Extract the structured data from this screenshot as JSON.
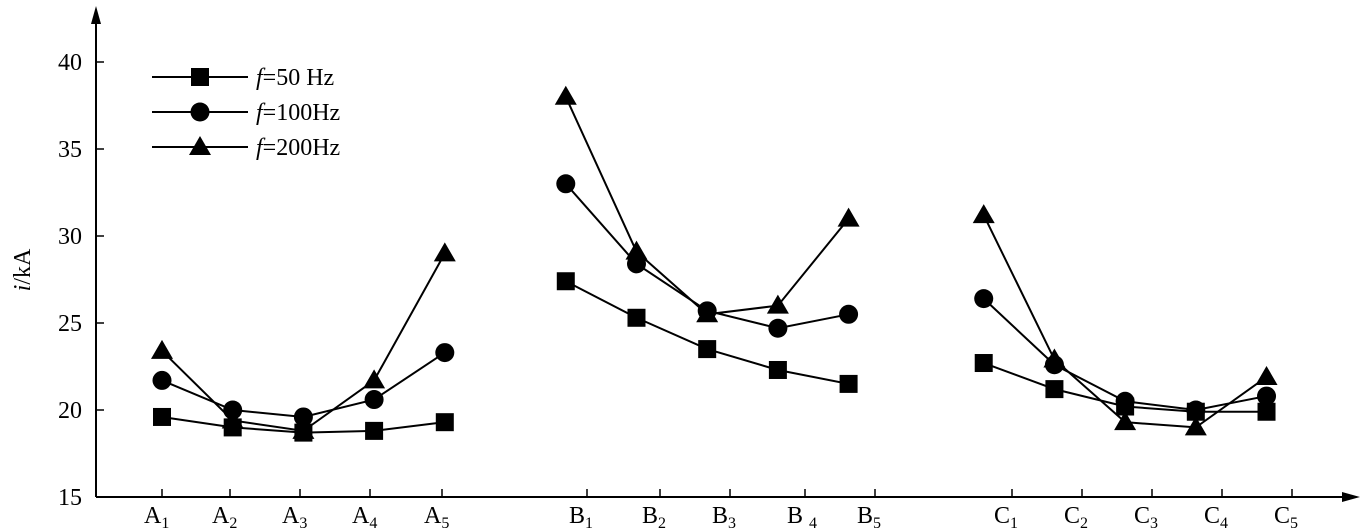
{
  "chart_data": {
    "type": "line",
    "ylabel": "i/kA",
    "ylabel_italic": "i",
    "ylabel_unit": "/kA",
    "ylim": [
      15,
      42
    ],
    "yticks": [
      "15",
      "20",
      "25",
      "30",
      "35",
      "40"
    ],
    "xtick_labels": [
      {
        "base": "A",
        "sub": "1"
      },
      {
        "base": "A",
        "sub": "2"
      },
      {
        "base": "A",
        "sub": "3"
      },
      {
        "base": "A",
        "sub": "4"
      },
      {
        "base": "A",
        "sub": "5"
      },
      {
        "base": "B",
        "sub": "1"
      },
      {
        "base": "B",
        "sub": "2"
      },
      {
        "base": "B",
        "sub": "3"
      },
      {
        "base": "B ",
        "sub": "4"
      },
      {
        "base": "B",
        "sub": "5"
      },
      {
        "base": "C",
        "sub": "1"
      },
      {
        "base": "C",
        "sub": "2"
      },
      {
        "base": "C",
        "sub": "3"
      },
      {
        "base": "C",
        "sub": "4"
      },
      {
        "base": "C",
        "sub": "5"
      }
    ],
    "grid": false,
    "legend_position": "top-left",
    "series": [
      {
        "name": "f=50 Hz",
        "name_italic": "f",
        "name_rest": "=50 Hz",
        "marker": "square",
        "groups": [
          [
            [
              0.0,
              19.6
            ],
            [
              1.0,
              19.0
            ],
            [
              2.0,
              18.7
            ],
            [
              3.0,
              18.8
            ],
            [
              4.0,
              19.3
            ]
          ],
          [
            [
              -0.3,
              27.4
            ],
            [
              0.7,
              25.3
            ],
            [
              1.7,
              23.5
            ],
            [
              2.7,
              22.3
            ],
            [
              3.7,
              21.5
            ]
          ],
          [
            [
              -0.4,
              22.7
            ],
            [
              0.6,
              21.2
            ],
            [
              1.6,
              20.2
            ],
            [
              2.6,
              19.9
            ],
            [
              3.6,
              19.9
            ]
          ]
        ]
      },
      {
        "name": "f=100Hz",
        "name_italic": "f",
        "name_rest": "=100Hz",
        "marker": "circle",
        "groups": [
          [
            [
              0.0,
              21.7
            ],
            [
              1.0,
              20.0
            ],
            [
              2.0,
              19.6
            ],
            [
              3.0,
              20.6
            ],
            [
              4.0,
              23.3
            ]
          ],
          [
            [
              -0.3,
              33.0
            ],
            [
              0.7,
              28.4
            ],
            [
              1.7,
              25.7
            ],
            [
              2.7,
              24.7
            ],
            [
              3.7,
              25.5
            ]
          ],
          [
            [
              -0.4,
              26.4
            ],
            [
              0.6,
              22.6
            ],
            [
              1.6,
              20.5
            ],
            [
              2.6,
              20.0
            ],
            [
              3.6,
              20.8
            ]
          ]
        ]
      },
      {
        "name": "f=200Hz",
        "name_italic": "f",
        "name_rest": "=200Hz",
        "marker": "triangle",
        "groups": [
          [
            [
              0.0,
              23.4
            ],
            [
              1.0,
              19.4
            ],
            [
              2.0,
              18.8
            ],
            [
              3.0,
              21.7
            ],
            [
              4.0,
              29.0
            ]
          ],
          [
            [
              -0.3,
              38.0
            ],
            [
              0.7,
              29.1
            ],
            [
              1.7,
              25.5
            ],
            [
              2.7,
              26.0
            ],
            [
              3.7,
              31.0
            ]
          ],
          [
            [
              -0.4,
              31.2
            ],
            [
              0.6,
              22.9
            ],
            [
              1.6,
              19.3
            ],
            [
              2.6,
              19.0
            ],
            [
              3.6,
              21.9
            ]
          ]
        ]
      }
    ]
  }
}
